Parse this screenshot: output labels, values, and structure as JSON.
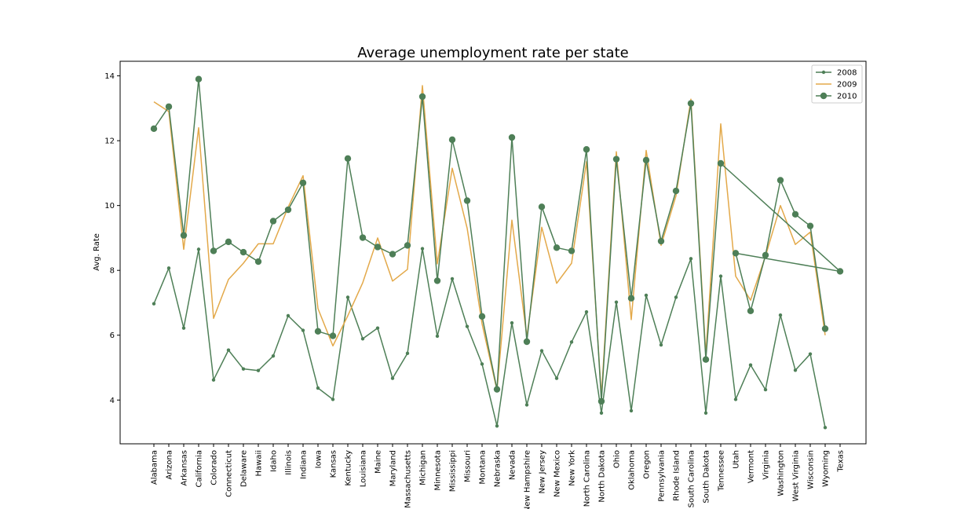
{
  "chart_data": {
    "type": "line",
    "title": "Average unemployment rate per state",
    "xlabel": "",
    "ylabel": "Avg. Rate",
    "ylim": [
      2.65,
      14.45
    ],
    "yticks": [
      4,
      6,
      8,
      10,
      12,
      14
    ],
    "grid": false,
    "legend_position": "top-right",
    "categories": [
      "Alabama",
      "Arizona",
      "Arkansas",
      "California",
      "Colorado",
      "Connecticut",
      "Delaware",
      "Hawaii",
      "Idaho",
      "Illinois",
      "Indiana",
      "Iowa",
      "Kansas",
      "Kentucky",
      "Louisiana",
      "Maine",
      "Maryland",
      "Massachusetts",
      "Michigan",
      "Minnesota",
      "Mississippi",
      "Missouri",
      "Montana",
      "Nebraska",
      "Nevada",
      "New Hampshire",
      "New Jersey",
      "New Mexico",
      "New York",
      "North Carolina",
      "North Dakota",
      "Ohio",
      "Oklahoma",
      "Oregon",
      "Pennsylvania",
      "Rhode Island",
      "South Carolina",
      "South Dakota",
      "Tennessee",
      "Utah",
      "Vermont",
      "Virginia",
      "Washington",
      "West Virginia",
      "Wisconsin",
      "Wyoming",
      "Texas"
    ],
    "series": [
      {
        "name": "2008",
        "color": "#4e7f57",
        "marker": "small",
        "points": [
          [
            0,
            6.97
          ],
          [
            1,
            8.07
          ],
          [
            2,
            6.22
          ],
          [
            3,
            8.65
          ],
          [
            4,
            4.62
          ],
          [
            5,
            5.54
          ],
          [
            6,
            4.96
          ],
          [
            7,
            4.91
          ],
          [
            8,
            5.36
          ],
          [
            9,
            6.6
          ],
          [
            10,
            6.15
          ],
          [
            11,
            4.37
          ],
          [
            12,
            4.02
          ],
          [
            13,
            7.17
          ],
          [
            14,
            5.89
          ],
          [
            15,
            6.22
          ],
          [
            16,
            4.67
          ],
          [
            17,
            5.44
          ],
          [
            18,
            8.67
          ],
          [
            19,
            5.97
          ],
          [
            20,
            7.74
          ],
          [
            21,
            6.27
          ],
          [
            22,
            5.11
          ],
          [
            23,
            3.2
          ],
          [
            24,
            6.38
          ],
          [
            25,
            3.85
          ],
          [
            26,
            5.52
          ],
          [
            27,
            4.67
          ],
          [
            28,
            5.79
          ],
          [
            29,
            6.72
          ],
          [
            30,
            3.6
          ],
          [
            31,
            7.02
          ],
          [
            32,
            3.67
          ],
          [
            33,
            7.23
          ],
          [
            34,
            5.7
          ],
          [
            35,
            7.17
          ],
          [
            36,
            8.36
          ],
          [
            37,
            3.6
          ],
          [
            38,
            7.82
          ],
          [
            39,
            4.02
          ],
          [
            40,
            5.08
          ],
          [
            41,
            4.32
          ],
          [
            42,
            6.62
          ],
          [
            43,
            4.92
          ],
          [
            44,
            5.42
          ],
          [
            45,
            3.15
          ]
        ]
      },
      {
        "name": "2009",
        "color": "#e3a94a",
        "marker": "none",
        "points": [
          [
            0,
            13.2
          ],
          [
            1,
            12.9
          ],
          [
            2,
            8.65
          ],
          [
            3,
            12.4
          ],
          [
            4,
            6.52
          ],
          [
            5,
            7.72
          ],
          [
            6,
            8.22
          ],
          [
            7,
            8.82
          ],
          [
            8,
            8.82
          ],
          [
            9,
            9.95
          ],
          [
            10,
            10.92
          ],
          [
            11,
            6.82
          ],
          [
            12,
            5.67
          ],
          [
            13,
            6.6
          ],
          [
            14,
            7.62
          ],
          [
            15,
            9.0
          ],
          [
            16,
            7.67
          ],
          [
            17,
            8.03
          ],
          [
            18,
            13.7
          ],
          [
            19,
            8.2
          ],
          [
            20,
            11.15
          ],
          [
            21,
            9.3
          ],
          [
            22,
            6.35
          ],
          [
            23,
            4.3
          ],
          [
            24,
            9.55
          ],
          [
            25,
            5.95
          ],
          [
            26,
            9.33
          ],
          [
            27,
            7.6
          ],
          [
            28,
            8.22
          ],
          [
            29,
            11.35
          ],
          [
            30,
            4.12
          ],
          [
            31,
            11.66
          ],
          [
            32,
            6.48
          ],
          [
            33,
            11.7
          ],
          [
            34,
            8.77
          ],
          [
            35,
            10.3
          ],
          [
            36,
            13.28
          ],
          [
            37,
            5.4
          ],
          [
            38,
            12.52
          ],
          [
            39,
            7.82
          ],
          [
            40,
            7.08
          ],
          [
            41,
            8.44
          ],
          [
            42,
            10.0
          ],
          [
            43,
            8.8
          ],
          [
            44,
            9.18
          ],
          [
            45,
            6.0
          ]
        ]
      },
      {
        "name": "2010",
        "color": "#4e7f57",
        "marker": "large",
        "points": [
          [
            0,
            12.37
          ],
          [
            1,
            13.05
          ],
          [
            2,
            9.08
          ],
          [
            3,
            13.9
          ],
          [
            4,
            8.6
          ],
          [
            5,
            8.88
          ],
          [
            6,
            8.56
          ],
          [
            7,
            8.27
          ],
          [
            8,
            9.52
          ],
          [
            9,
            9.87
          ],
          [
            10,
            10.7
          ],
          [
            11,
            6.12
          ],
          [
            12,
            5.98
          ],
          [
            13,
            11.45
          ],
          [
            14,
            9.01
          ],
          [
            15,
            8.72
          ],
          [
            16,
            8.5
          ],
          [
            17,
            8.77
          ],
          [
            18,
            13.36
          ],
          [
            19,
            7.68
          ],
          [
            20,
            12.03
          ],
          [
            21,
            10.15
          ],
          [
            22,
            6.58
          ],
          [
            23,
            4.33
          ],
          [
            24,
            12.1
          ],
          [
            25,
            5.8
          ],
          [
            26,
            9.96
          ],
          [
            27,
            8.7
          ],
          [
            28,
            8.6
          ],
          [
            29,
            11.73
          ],
          [
            30,
            3.96
          ],
          [
            31,
            11.43
          ],
          [
            32,
            7.14
          ],
          [
            33,
            11.4
          ],
          [
            34,
            8.9
          ],
          [
            35,
            10.45
          ],
          [
            36,
            13.15
          ],
          [
            37,
            5.25
          ],
          [
            38,
            11.3
          ],
          [
            46,
            7.97
          ],
          [
            39,
            8.53
          ],
          [
            40,
            6.75
          ],
          [
            41,
            8.47
          ],
          [
            42,
            10.78
          ],
          [
            43,
            9.73
          ],
          [
            44,
            9.37
          ],
          [
            45,
            6.2
          ]
        ]
      }
    ]
  }
}
